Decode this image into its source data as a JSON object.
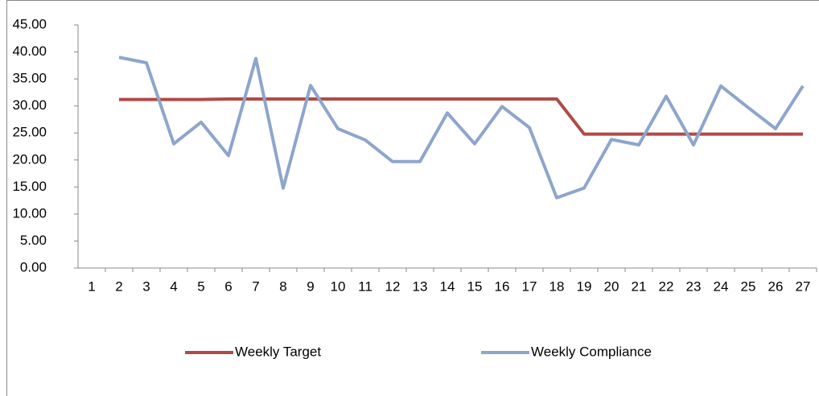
{
  "chart_data": {
    "type": "line",
    "categories": [
      "1",
      "2",
      "3",
      "4",
      "5",
      "6",
      "7",
      "8",
      "9",
      "10",
      "11",
      "12",
      "13",
      "14",
      "15",
      "16",
      "17",
      "18",
      "19",
      "20",
      "21",
      "22",
      "23",
      "24",
      "25",
      "26",
      "27"
    ],
    "series": [
      {
        "name": "Weekly Target",
        "color": "#b04a46",
        "values": [
          null,
          31.2,
          31.2,
          31.2,
          31.2,
          31.3,
          31.3,
          31.3,
          31.3,
          31.3,
          31.3,
          31.3,
          31.3,
          31.3,
          31.3,
          31.3,
          31.3,
          31.3,
          24.8,
          24.8,
          24.8,
          24.8,
          24.8,
          24.8,
          24.8,
          24.8,
          24.8
        ]
      },
      {
        "name": "Weekly Compliance",
        "color": "#8ea5cc",
        "values": [
          null,
          39,
          38,
          23,
          27,
          20.8,
          38.8,
          14.8,
          33.8,
          25.8,
          23.7,
          19.7,
          19.7,
          28.7,
          23,
          29.9,
          26,
          13,
          14.8,
          23.8,
          22.8,
          31.8,
          22.8,
          33.7,
          29.7,
          25.8,
          33.7
        ]
      }
    ],
    "ylim": [
      0,
      45
    ],
    "yticks": [
      {
        "value": 0,
        "label": "0.00"
      },
      {
        "value": 5,
        "label": "5.00"
      },
      {
        "value": 10,
        "label": "10.00"
      },
      {
        "value": 15,
        "label": "15.00"
      },
      {
        "value": 20,
        "label": "20.00"
      },
      {
        "value": 25,
        "label": "25.00"
      },
      {
        "value": 30,
        "label": "30.00"
      },
      {
        "value": 35,
        "label": "35.00"
      },
      {
        "value": 40,
        "label": "40.00"
      },
      {
        "value": 45,
        "label": "45.00"
      }
    ],
    "legend": "bottom"
  }
}
